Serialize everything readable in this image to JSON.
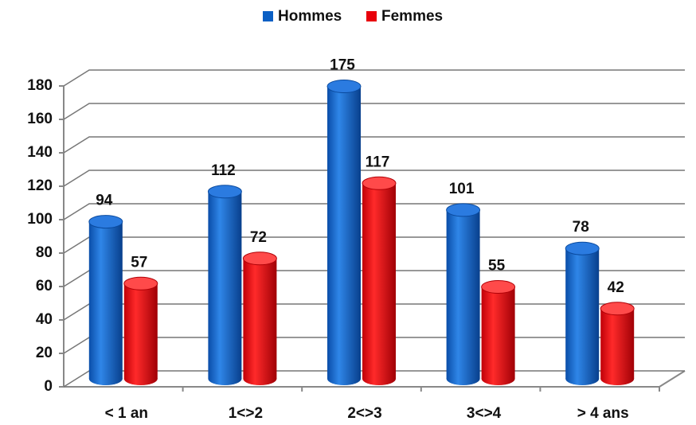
{
  "chart_data": {
    "type": "bar",
    "categories": [
      "< 1 an",
      "1<>2",
      "2<>3",
      "3<>4",
      "> 4 ans"
    ],
    "series": [
      {
        "name": "Hommes",
        "color": "#0a5fc4",
        "values": [
          94,
          112,
          175,
          101,
          78
        ]
      },
      {
        "name": "Femmes",
        "color": "#e8000b",
        "values": [
          57,
          72,
          117,
          55,
          42
        ]
      }
    ],
    "ylim": [
      0,
      180
    ],
    "yticks": [
      0,
      20,
      40,
      60,
      80,
      100,
      120,
      140,
      160,
      180
    ],
    "grid": true,
    "legend": "top"
  }
}
